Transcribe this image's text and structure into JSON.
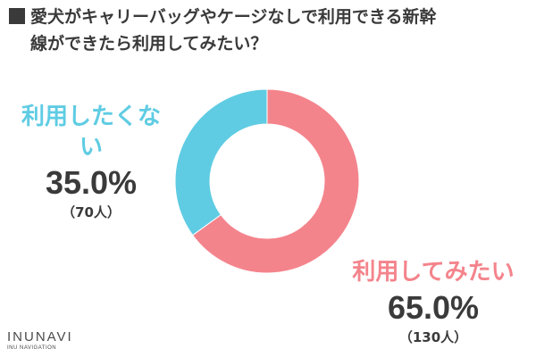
{
  "title_line1": "愛犬がキャリーバッグやケージなしで利用できる新幹",
  "title_line2": "線ができたら利用してみたい？",
  "chart_data": {
    "type": "pie",
    "style": "donut",
    "slices": [
      {
        "label": "利用してみたい",
        "value": 65.0,
        "value_text": "65.0%",
        "count_text": "（130人）",
        "color": "#f4848c"
      },
      {
        "label": "利用したくない",
        "value": 35.0,
        "value_text": "35.0%",
        "count_text": "（70人）",
        "color": "#5fcce3"
      }
    ]
  },
  "logo": {
    "main": "INUNAVI",
    "sub": "INU NAVIGATION"
  }
}
